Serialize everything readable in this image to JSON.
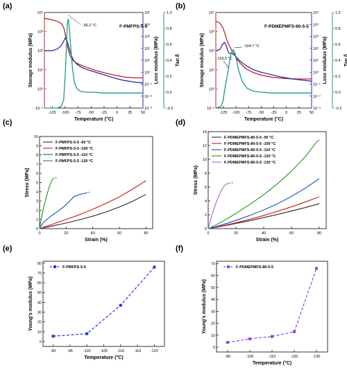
{
  "chart_data": [
    {
      "id": "a",
      "panel_label": "(a)",
      "type": "line",
      "title": "F-PMFPS-5-5",
      "xlabel": "Temperature (°C)",
      "ylabel_left": "Storage modulus (MPa)",
      "ylabel_right1": "Loss modulus (MPa)",
      "ylabel_right2": "Tan δ",
      "xlim": [
        -140,
        50
      ],
      "xticks": [
        -125,
        -100,
        -75,
        -50,
        -25,
        0,
        25,
        50
      ],
      "xtick_labels": [
        "-125",
        "-100",
        "-75",
        "-50",
        "-25",
        "0",
        "25",
        "50"
      ],
      "ylim_left_log": [
        -1,
        4
      ],
      "left_tick_labels": [
        "10⁻¹",
        "10⁰",
        "10¹",
        "10²",
        "10³",
        "10⁴"
      ],
      "ylim_right1_log": [
        -3,
        5
      ],
      "right1_tick_labels": [
        "10⁻³",
        "10⁻²",
        "10⁻¹",
        "10⁰",
        "10¹",
        "10²",
        "10³",
        "10⁴",
        "10⁵"
      ],
      "ylim_right2": [
        -0.2,
        1.0
      ],
      "right2_tick_labels": [
        "-0.2",
        "0.0",
        "0.2",
        "0.4",
        "0.6",
        "0.8",
        "1.0"
      ],
      "annotations": [
        {
          "text": "-96.2 °C",
          "x": -96.2
        }
      ],
      "colors": {
        "storage": "#c0202a",
        "loss": "#2d2d9e",
        "tan": "#1a9a8a"
      },
      "series": [
        {
          "axis": "left",
          "x": [
            -140,
            -130,
            -120,
            -112,
            -106,
            -102,
            -99,
            -96,
            -93,
            -90,
            -85,
            -78,
            -70,
            -60,
            -45,
            -25,
            -5,
            15,
            35,
            50
          ],
          "y": [
            3.7,
            3.65,
            3.58,
            3.5,
            3.38,
            3.15,
            2.75,
            2.3,
            1.95,
            1.7,
            1.5,
            1.35,
            1.25,
            1.15,
            1.0,
            0.85,
            0.72,
            0.62,
            0.58,
            0.58
          ]
        },
        {
          "axis": "right1",
          "x": [
            -140,
            -125,
            -115,
            -108,
            -103,
            -100,
            -97,
            -94,
            -91,
            -88,
            -84,
            -78,
            -70,
            -60,
            -45,
            -30,
            -15,
            0,
            15,
            30,
            50
          ],
          "y": [
            1.8,
            1.8,
            1.95,
            2.2,
            2.6,
            2.85,
            2.7,
            2.3,
            1.8,
            1.4,
            1.0,
            0.7,
            0.45,
            0.25,
            0.05,
            -0.15,
            -0.35,
            -0.55,
            -0.7,
            -0.8,
            -0.9
          ]
        },
        {
          "axis": "right2",
          "x": [
            -140,
            -115,
            -108,
            -103,
            -100,
            -98,
            -96,
            -94,
            -92,
            -89,
            -86,
            -82,
            -77,
            -70,
            -60,
            -45,
            -30,
            -15,
            0,
            20,
            50
          ],
          "y": [
            -0.2,
            -0.2,
            -0.18,
            -0.1,
            0.2,
            0.5,
            0.85,
            0.92,
            0.8,
            0.55,
            0.3,
            0.12,
            0.04,
            0.01,
            0.0,
            0.0,
            -0.01,
            -0.01,
            -0.01,
            -0.01,
            -0.01
          ]
        }
      ]
    },
    {
      "id": "b",
      "panel_label": "(b)",
      "type": "line",
      "title": "F-PDMEPMFS-80-5-5",
      "xlabel": "Temperature (°C)",
      "ylabel_left": "Storage modulus (MPa)",
      "ylabel_right1": "Loss modulus (MPa)",
      "ylabel_right2": "Tan δ",
      "xlim": [
        -140,
        50
      ],
      "xticks": [
        -125,
        -100,
        -75,
        -50,
        -25,
        0,
        25,
        50
      ],
      "xtick_labels": [
        "-125",
        "-100",
        "-75",
        "-50",
        "-25",
        "0",
        "25",
        "50"
      ],
      "ylim_left_log": [
        -1,
        4
      ],
      "left_tick_labels": [
        "10⁻¹",
        "10⁰",
        "10¹",
        "10²",
        "10³",
        "10⁴"
      ],
      "ylim_right1_log": [
        -3,
        5
      ],
      "right1_tick_labels": [
        "10⁻³",
        "10⁻²",
        "10⁻¹",
        "10⁰",
        "10¹",
        "10²",
        "10³",
        "10⁴",
        "10⁵"
      ],
      "ylim_right2": [
        -0.2,
        1.0
      ],
      "right2_tick_labels": [
        "-0.2",
        "0.0",
        "0.2",
        "0.4",
        "0.6",
        "0.8",
        "1.0"
      ],
      "annotations": [
        {
          "text": "-119.5 °C",
          "x": -119.5
        },
        {
          "text": "-104.7 °C",
          "x": -104.7
        }
      ],
      "colors": {
        "storage": "#c0202a",
        "loss": "#2d2d9e",
        "tan": "#1a9a8a"
      },
      "series": [
        {
          "axis": "left",
          "x": [
            -140,
            -132,
            -126,
            -122,
            -118,
            -113,
            -108,
            -103,
            -98,
            -90,
            -80,
            -65,
            -50,
            -30,
            -10,
            10,
            30,
            50
          ],
          "y": [
            3.55,
            3.45,
            3.2,
            2.9,
            2.55,
            2.25,
            2.0,
            1.8,
            1.55,
            1.3,
            1.05,
            0.85,
            0.72,
            0.62,
            0.56,
            0.53,
            0.52,
            0.52
          ]
        },
        {
          "axis": "right1",
          "x": [
            -140,
            -132,
            -127,
            -123,
            -120,
            -117,
            -114,
            -110,
            -106,
            -102,
            -96,
            -88,
            -78,
            -65,
            -50,
            -30,
            -10,
            10,
            30,
            50
          ],
          "y": [
            1.8,
            1.9,
            2.3,
            2.5,
            2.3,
            1.9,
            1.6,
            1.55,
            1.55,
            1.4,
            1.1,
            0.8,
            0.5,
            0.2,
            0.0,
            -0.2,
            -0.4,
            -0.55,
            -0.65,
            -0.75
          ]
        },
        {
          "axis": "right2",
          "x": [
            -140,
            -130,
            -126,
            -123,
            -120,
            -117,
            -114,
            -111,
            -108,
            -105,
            -102,
            -99,
            -95,
            -88,
            -78,
            -65,
            -50,
            -30,
            -10,
            10,
            50
          ],
          "y": [
            -0.2,
            -0.18,
            -0.12,
            0.0,
            0.12,
            0.22,
            0.34,
            0.46,
            0.52,
            0.53,
            0.49,
            0.4,
            0.28,
            0.14,
            0.05,
            0.01,
            0.0,
            -0.01,
            -0.01,
            -0.01,
            -0.01
          ]
        }
      ]
    },
    {
      "id": "c",
      "panel_label": "(c)",
      "type": "line",
      "xlabel": "Strain (%)",
      "ylabel": "Stress (MPa)",
      "xlim": [
        0,
        85
      ],
      "xticks": [
        0,
        20,
        40,
        60,
        80
      ],
      "xtick_labels": [
        "0",
        "20",
        "40",
        "60",
        "80"
      ],
      "ylim": [
        0,
        10
      ],
      "yticks": [
        0,
        1,
        2,
        3,
        4,
        5,
        6,
        7,
        8,
        9,
        10
      ],
      "ytick_labels": [
        "0",
        "1",
        "2",
        "3",
        "4",
        "5",
        "6",
        "7",
        "8",
        "9",
        "10"
      ],
      "series": [
        {
          "name": "F-PMFPS-5-5   -90 °C",
          "color": "#3a3a3a",
          "x": [
            0,
            10,
            20,
            30,
            40,
            50,
            60,
            70,
            80
          ],
          "y": [
            0,
            0.3,
            0.62,
            0.96,
            1.35,
            1.82,
            2.35,
            2.98,
            3.72
          ]
        },
        {
          "name": "F-PMFPS-5-5   -100 °C",
          "color": "#d62728",
          "x": [
            0,
            10,
            20,
            30,
            40,
            50,
            60,
            70,
            80
          ],
          "y": [
            0,
            0.5,
            1.0,
            1.52,
            2.1,
            2.75,
            3.45,
            4.3,
            5.2
          ]
        },
        {
          "name": "F-PMFPS-5-5   -110 °C",
          "color": "#1f5fbf",
          "break_mark": true,
          "x": [
            0,
            3,
            8,
            14,
            20,
            26,
            30,
            36
          ],
          "y": [
            0,
            0.7,
            1.3,
            1.9,
            2.6,
            3.5,
            3.7,
            3.9
          ]
        },
        {
          "name": "F-PMFPS-5-5   -120 °C",
          "color": "#2ca02c",
          "break_mark": true,
          "x": [
            0,
            1.5,
            3,
            5,
            7,
            9,
            10,
            11
          ],
          "y": [
            0,
            1.2,
            2.3,
            3.4,
            4.4,
            5.2,
            5.4,
            5.5
          ]
        }
      ]
    },
    {
      "id": "d",
      "panel_label": "(d)",
      "type": "line",
      "xlabel": "Strain (%)",
      "ylabel": "Stress (MPa)",
      "xlim": [
        0,
        85
      ],
      "xticks": [
        0,
        20,
        40,
        60,
        80
      ],
      "xtick_labels": [
        "0",
        "20",
        "40",
        "60",
        "80"
      ],
      "ylim": [
        0,
        14
      ],
      "yticks": [
        0,
        2,
        4,
        6,
        8,
        10,
        12,
        14
      ],
      "ytick_labels": [
        "0",
        "2",
        "4",
        "6",
        "8",
        "10",
        "12",
        "14"
      ],
      "series": [
        {
          "name": "F-PDMEPMFS-80-5-5   -90 °C",
          "color": "#3a3a3a",
          "x": [
            0,
            10,
            20,
            30,
            40,
            50,
            60,
            70,
            80
          ],
          "y": [
            0,
            0.35,
            0.75,
            1.15,
            1.6,
            2.05,
            2.55,
            3.05,
            3.6
          ]
        },
        {
          "name": "F-PDMEPMFS-80-5-5   -100 °C",
          "color": "#d62728",
          "x": [
            0,
            10,
            20,
            30,
            40,
            50,
            60,
            70,
            80
          ],
          "y": [
            0,
            0.4,
            0.85,
            1.35,
            1.9,
            2.5,
            3.15,
            3.85,
            4.6
          ]
        },
        {
          "name": "F-PDMEPMFS-80-5-5   -110 °C",
          "color": "#1f5fbf",
          "x": [
            0,
            10,
            20,
            30,
            40,
            50,
            60,
            70,
            80
          ],
          "y": [
            0,
            0.55,
            1.2,
            1.9,
            2.7,
            3.6,
            4.65,
            5.85,
            7.2
          ]
        },
        {
          "name": "F-PDMEPMFS-80-5-5   -120 °C",
          "color": "#2ca02c",
          "x": [
            0,
            10,
            20,
            30,
            40,
            50,
            60,
            70,
            78,
            80
          ],
          "y": [
            0,
            1.0,
            2.2,
            3.5,
            4.9,
            6.5,
            8.3,
            10.4,
            12.5,
            12.8
          ]
        },
        {
          "name": "F-PDMEPMFS-80-5-5   -130 °C",
          "color": "#b070d8",
          "break_mark": true,
          "x": [
            0,
            2,
            4,
            6,
            8,
            10,
            12,
            14,
            16
          ],
          "y": [
            0,
            1.5,
            2.8,
            3.9,
            4.9,
            5.7,
            6.3,
            6.5,
            6.6
          ]
        }
      ]
    },
    {
      "id": "e",
      "panel_label": "(e)",
      "type": "line",
      "xlabel": "Temperature (°C)",
      "ylabel": "Young's modulus (MPa)",
      "xlim": [
        -87,
        -123
      ],
      "xticks": [
        -90,
        -95,
        -100,
        -105,
        -110,
        -115,
        -120
      ],
      "xtick_labels": [
        "-90",
        "-95",
        "-100",
        "-105",
        "-110",
        "-115",
        "-120"
      ],
      "ylim": [
        -5,
        82
      ],
      "yticks": [
        0,
        10,
        20,
        30,
        40,
        50,
        60,
        70,
        80
      ],
      "ytick_labels": [
        "0",
        "10",
        "20",
        "30",
        "40",
        "50",
        "60",
        "70",
        "80"
      ],
      "series": [
        {
          "name": "F-PMFPS-5-5",
          "color": "#2233dd",
          "marker": "square",
          "dashed": true,
          "x": [
            -90,
            -100,
            -110,
            -120
          ],
          "y": [
            5.5,
            8,
            37,
            76
          ]
        }
      ]
    },
    {
      "id": "f",
      "panel_label": "(f)",
      "type": "line",
      "xlabel": "Temperature (°C)",
      "ylabel": "Young's modulus (MPa)",
      "xlim": [
        -85,
        -135
      ],
      "xticks": [
        -90,
        -100,
        -110,
        -120,
        -130
      ],
      "xtick_labels": [
        "-90",
        "-100",
        "-110",
        "-120",
        "-130"
      ],
      "ylim": [
        -4,
        72
      ],
      "yticks": [
        0,
        10,
        20,
        30,
        40,
        50,
        60,
        70
      ],
      "ytick_labels": [
        "0",
        "10",
        "20",
        "30",
        "40",
        "50",
        "60",
        "70"
      ],
      "series": [
        {
          "name": "F-PDMEPMFS-80-5-5",
          "color": "#8844dd",
          "marker": "square",
          "dashed": true,
          "x": [
            -90,
            -100,
            -110,
            -120,
            -130
          ],
          "y": [
            4,
            7,
            9,
            13,
            66
          ]
        }
      ]
    }
  ]
}
